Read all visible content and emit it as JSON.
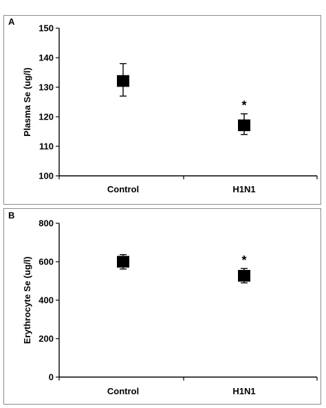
{
  "chart_data": [
    {
      "panel_label": "A",
      "type": "scatter",
      "ylabel": "Plasma Se (ug/l)",
      "categories": [
        "Control",
        "H1N1"
      ],
      "ylim": [
        100,
        150
      ],
      "yticks": [
        100,
        110,
        120,
        130,
        140,
        150
      ],
      "series": [
        {
          "values": [
            132,
            117
          ],
          "error_upper": [
            138,
            121
          ],
          "error_lower": [
            127,
            114
          ],
          "annotations": [
            "",
            "*"
          ]
        }
      ],
      "grid": false
    },
    {
      "panel_label": "B",
      "type": "scatter",
      "ylabel": "Erythrocyte Se (ug/l)",
      "categories": [
        "Control",
        "H1N1"
      ],
      "ylim": [
        0,
        800
      ],
      "yticks": [
        0,
        200,
        400,
        600,
        800
      ],
      "series": [
        {
          "values": [
            598,
            525
          ],
          "error_upper": [
            637,
            565
          ],
          "error_lower": [
            562,
            490
          ],
          "annotations": [
            "",
            "*"
          ]
        }
      ],
      "grid": false
    }
  ]
}
